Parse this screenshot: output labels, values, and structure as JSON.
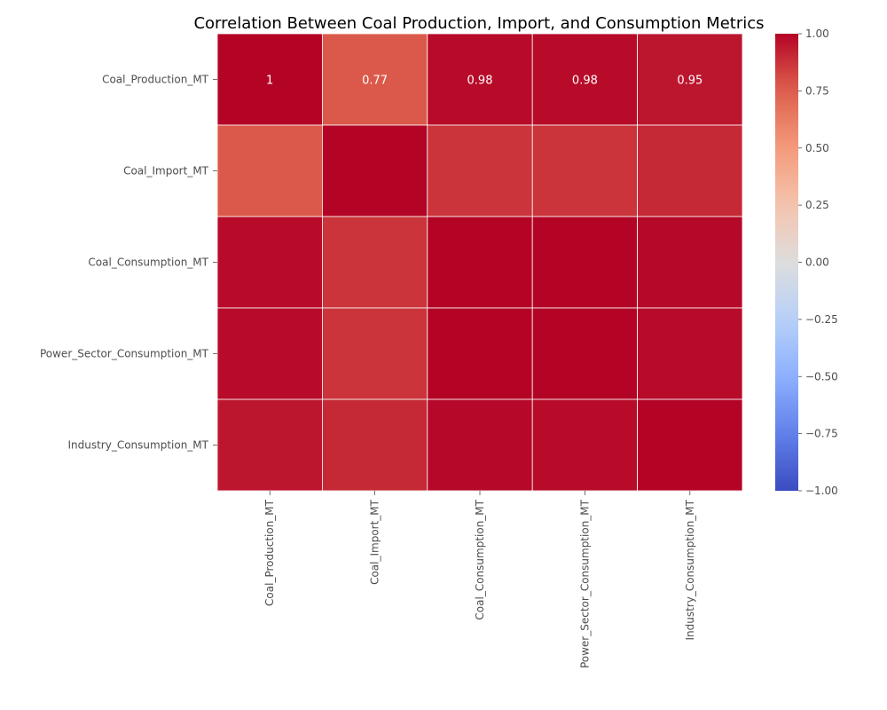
{
  "chart_data": {
    "type": "heatmap",
    "title": "Correlation Between Coal Production, Import, and Consumption Metrics",
    "row_labels": [
      "Coal_Production_MT",
      "Coal_Import_MT",
      "Coal_Consumption_MT",
      "Power_Sector_Consumption_MT",
      "Industry_Consumption_MT"
    ],
    "col_labels": [
      "Coal_Production_MT",
      "Coal_Import_MT",
      "Coal_Consumption_MT",
      "Power_Sector_Consumption_MT",
      "Industry_Consumption_MT"
    ],
    "values": [
      [
        1.0,
        0.77,
        0.98,
        0.98,
        0.95
      ],
      [
        0.77,
        1.0,
        0.87,
        0.87,
        0.9
      ],
      [
        0.98,
        0.87,
        1.0,
        1.0,
        0.99
      ],
      [
        0.98,
        0.87,
        1.0,
        1.0,
        0.98
      ],
      [
        0.95,
        0.9,
        0.99,
        0.98,
        1.0
      ]
    ],
    "annotations": [
      [
        "1",
        "0.77",
        "0.98",
        "0.98",
        "0.95"
      ],
      [
        "",
        "",
        "",
        "",
        ""
      ],
      [
        "",
        "",
        "",
        "",
        ""
      ],
      [
        "",
        "",
        "",
        "",
        ""
      ],
      [
        "",
        "",
        "",
        "",
        ""
      ]
    ],
    "colormap": "coolwarm",
    "vmin": -1,
    "vmax": 1,
    "colorbar_ticks": [
      "1.00",
      "0.75",
      "0.50",
      "0.25",
      "0.00",
      "−0.25",
      "−0.50",
      "−0.75",
      "−1.00"
    ],
    "colorbar_values": [
      1.0,
      0.75,
      0.5,
      0.25,
      0.0,
      -0.25,
      -0.5,
      -0.75,
      -1.0
    ],
    "grid_line_color": "#ffffff"
  }
}
